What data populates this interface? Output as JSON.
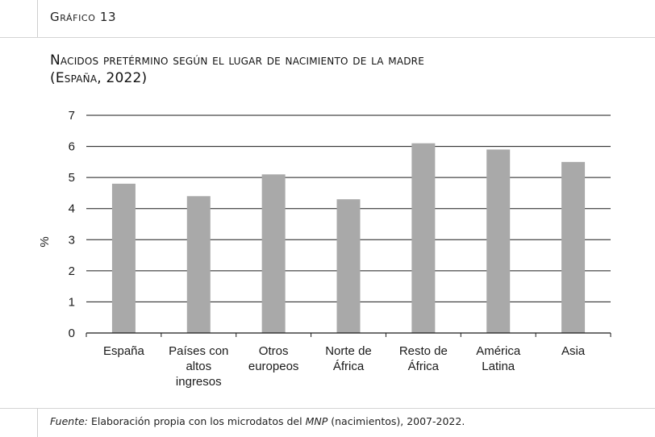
{
  "figure_label": "Gráfico 13",
  "title_line1": "Nacidos pretérmino según el lugar de nacimiento de la madre",
  "title_line2": "(España, 2022)",
  "source": {
    "label": "Fuente:",
    "text_before": "Elaboración propia con los microdatos del",
    "italic": "MNP",
    "text_after": "(nacimientos), 2007-2022."
  },
  "chart_data": {
    "type": "bar",
    "title": "Nacidos pretérmino según el lugar de nacimiento de la madre (España, 2022)",
    "xlabel": "",
    "ylabel": "%",
    "ylim": [
      0,
      7
    ],
    "yticks": [
      0,
      1,
      2,
      3,
      4,
      5,
      6,
      7
    ],
    "grid": true,
    "categories": [
      [
        "España"
      ],
      [
        "Países con",
        "altos",
        "ingresos"
      ],
      [
        "Otros",
        "europeos"
      ],
      [
        "Norte de",
        "África"
      ],
      [
        "Resto de",
        "África"
      ],
      [
        "América",
        "Latina"
      ],
      [
        "Asia"
      ]
    ],
    "values": [
      4.8,
      4.4,
      5.1,
      4.3,
      6.1,
      5.9,
      5.5
    ],
    "bar_color": "#a9a9a9",
    "grid_color": "#1a1a1a"
  }
}
